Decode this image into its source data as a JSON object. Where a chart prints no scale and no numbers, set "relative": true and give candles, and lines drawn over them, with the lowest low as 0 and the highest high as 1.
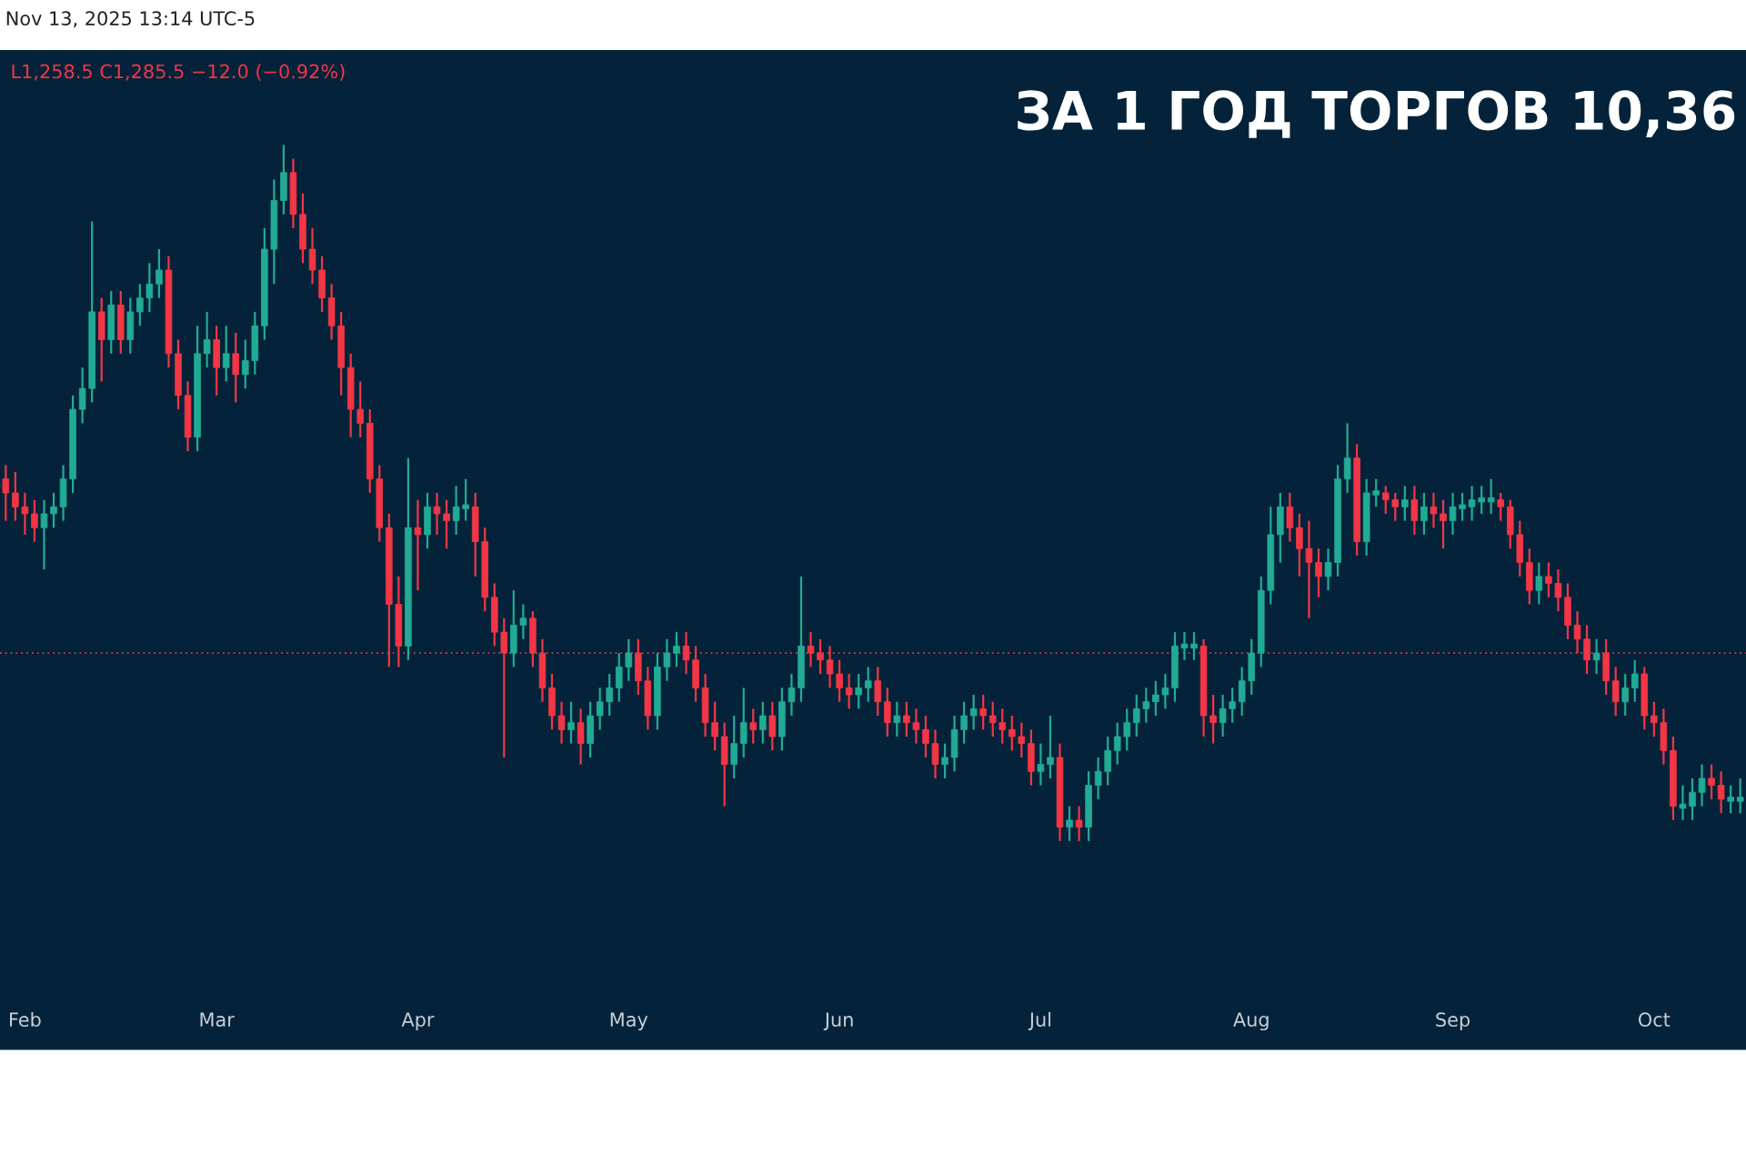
{
  "chart_data": {
    "type": "candlestick",
    "relative": true,
    "title": "ЗА 1 ГОД ТОРГОВ 10,36",
    "annotations": [
      "Nov 13, 2025 13:14 UTC-5",
      "L1,258.5 C1,285.5 −12.0 (−0.92%)"
    ],
    "categories": [
      null,
      null,
      "Feb",
      null,
      null,
      null,
      null,
      null,
      null,
      null,
      null,
      null,
      null,
      null,
      null,
      null,
      null,
      null,
      null,
      null,
      null,
      null,
      "Mar",
      null,
      null,
      null,
      null,
      null,
      null,
      null,
      null,
      null,
      null,
      null,
      null,
      null,
      null,
      null,
      null,
      null,
      null,
      null,
      null,
      "Apr",
      null,
      null,
      null,
      null,
      null,
      null,
      null,
      null,
      null,
      null,
      null,
      null,
      null,
      null,
      null,
      null,
      null,
      null,
      null,
      null,
      null,
      "May",
      null,
      null,
      null,
      null,
      null,
      null,
      null,
      null,
      null,
      null,
      null,
      null,
      null,
      null,
      null,
      null,
      null,
      null,
      null,
      null,
      null,
      "Jun",
      null,
      null,
      null,
      null,
      null,
      null,
      null,
      null,
      null,
      null,
      null,
      null,
      null,
      null,
      null,
      null,
      null,
      null,
      null,
      null,
      "Jul",
      null,
      null,
      null,
      null,
      null,
      null,
      null,
      null,
      null,
      null,
      null,
      null,
      null,
      null,
      null,
      null,
      null,
      null,
      null,
      null,
      null,
      "Aug",
      null,
      null,
      null,
      null,
      null,
      null,
      null,
      null,
      null,
      null,
      null,
      null,
      null,
      null,
      null,
      null,
      null,
      null,
      null,
      null,
      "Sep",
      null,
      null,
      null,
      null,
      null,
      null,
      null,
      null,
      null,
      null,
      null,
      null,
      null,
      null,
      null,
      null,
      null,
      null,
      null,
      null,
      "Oct",
      null,
      null,
      null,
      null,
      null,
      null,
      null,
      null,
      null
    ],
    "ohlc": [
      [
        0.52,
        0.54,
        0.46,
        0.5
      ],
      [
        0.5,
        0.53,
        0.46,
        0.48
      ],
      [
        0.48,
        0.5,
        0.44,
        0.47
      ],
      [
        0.47,
        0.49,
        0.43,
        0.45
      ],
      [
        0.45,
        0.49,
        0.39,
        0.47
      ],
      [
        0.47,
        0.5,
        0.45,
        0.48
      ],
      [
        0.48,
        0.54,
        0.46,
        0.52
      ],
      [
        0.52,
        0.64,
        0.5,
        0.62
      ],
      [
        0.62,
        0.68,
        0.6,
        0.65
      ],
      [
        0.65,
        0.89,
        0.63,
        0.76
      ],
      [
        0.76,
        0.78,
        0.66,
        0.72
      ],
      [
        0.72,
        0.79,
        0.7,
        0.77
      ],
      [
        0.77,
        0.79,
        0.7,
        0.72
      ],
      [
        0.72,
        0.78,
        0.7,
        0.76
      ],
      [
        0.76,
        0.8,
        0.74,
        0.78
      ],
      [
        0.78,
        0.83,
        0.76,
        0.8
      ],
      [
        0.8,
        0.85,
        0.78,
        0.82
      ],
      [
        0.82,
        0.84,
        0.68,
        0.7
      ],
      [
        0.7,
        0.72,
        0.62,
        0.64
      ],
      [
        0.64,
        0.66,
        0.56,
        0.58
      ],
      [
        0.58,
        0.74,
        0.56,
        0.7
      ],
      [
        0.7,
        0.76,
        0.68,
        0.72
      ],
      [
        0.72,
        0.74,
        0.64,
        0.68
      ],
      [
        0.68,
        0.74,
        0.66,
        0.7
      ],
      [
        0.7,
        0.73,
        0.63,
        0.67
      ],
      [
        0.67,
        0.72,
        0.65,
        0.69
      ],
      [
        0.69,
        0.76,
        0.67,
        0.74
      ],
      [
        0.74,
        0.88,
        0.72,
        0.85
      ],
      [
        0.85,
        0.95,
        0.8,
        0.92
      ],
      [
        0.92,
        1.0,
        0.9,
        0.96
      ],
      [
        0.96,
        0.98,
        0.88,
        0.9
      ],
      [
        0.9,
        0.93,
        0.83,
        0.85
      ],
      [
        0.85,
        0.88,
        0.8,
        0.82
      ],
      [
        0.82,
        0.84,
        0.76,
        0.78
      ],
      [
        0.78,
        0.8,
        0.72,
        0.74
      ],
      [
        0.74,
        0.76,
        0.64,
        0.68
      ],
      [
        0.68,
        0.7,
        0.58,
        0.62
      ],
      [
        0.62,
        0.66,
        0.58,
        0.6
      ],
      [
        0.6,
        0.62,
        0.5,
        0.52
      ],
      [
        0.52,
        0.54,
        0.43,
        0.45
      ],
      [
        0.45,
        0.47,
        0.25,
        0.34
      ],
      [
        0.34,
        0.38,
        0.25,
        0.28
      ],
      [
        0.28,
        0.55,
        0.26,
        0.45
      ],
      [
        0.45,
        0.49,
        0.36,
        0.44
      ],
      [
        0.44,
        0.5,
        0.42,
        0.48
      ],
      [
        0.48,
        0.5,
        0.44,
        0.47
      ],
      [
        0.47,
        0.49,
        0.42,
        0.46
      ],
      [
        0.46,
        0.51,
        0.44,
        0.48
      ],
      [
        0.48,
        0.52,
        0.46,
        0.48
      ],
      [
        0.48,
        0.5,
        0.38,
        0.43
      ],
      [
        0.43,
        0.45,
        0.33,
        0.35
      ],
      [
        0.35,
        0.37,
        0.28,
        0.3
      ],
      [
        0.3,
        0.32,
        0.12,
        0.27
      ],
      [
        0.27,
        0.36,
        0.25,
        0.31
      ],
      [
        0.31,
        0.34,
        0.29,
        0.32
      ],
      [
        0.32,
        0.33,
        0.25,
        0.27
      ],
      [
        0.27,
        0.29,
        0.2,
        0.22
      ],
      [
        0.22,
        0.24,
        0.16,
        0.18
      ],
      [
        0.18,
        0.2,
        0.14,
        0.16
      ],
      [
        0.16,
        0.2,
        0.14,
        0.17
      ],
      [
        0.17,
        0.19,
        0.11,
        0.14
      ],
      [
        0.14,
        0.2,
        0.12,
        0.18
      ],
      [
        0.18,
        0.22,
        0.16,
        0.2
      ],
      [
        0.2,
        0.24,
        0.18,
        0.22
      ],
      [
        0.22,
        0.27,
        0.2,
        0.25
      ],
      [
        0.25,
        0.29,
        0.23,
        0.27
      ],
      [
        0.27,
        0.29,
        0.21,
        0.23
      ],
      [
        0.23,
        0.25,
        0.16,
        0.18
      ],
      [
        0.18,
        0.27,
        0.16,
        0.25
      ],
      [
        0.25,
        0.29,
        0.23,
        0.27
      ],
      [
        0.27,
        0.3,
        0.25,
        0.28
      ],
      [
        0.28,
        0.3,
        0.24,
        0.26
      ],
      [
        0.26,
        0.28,
        0.2,
        0.22
      ],
      [
        0.22,
        0.24,
        0.15,
        0.17
      ],
      [
        0.17,
        0.2,
        0.13,
        0.15
      ],
      [
        0.15,
        0.17,
        0.05,
        0.11
      ],
      [
        0.11,
        0.18,
        0.09,
        0.14
      ],
      [
        0.14,
        0.22,
        0.12,
        0.17
      ],
      [
        0.17,
        0.19,
        0.14,
        0.16
      ],
      [
        0.16,
        0.2,
        0.14,
        0.18
      ],
      [
        0.18,
        0.2,
        0.13,
        0.15
      ],
      [
        0.15,
        0.22,
        0.13,
        0.2
      ],
      [
        0.2,
        0.24,
        0.18,
        0.22
      ],
      [
        0.22,
        0.38,
        0.2,
        0.28
      ],
      [
        0.28,
        0.3,
        0.25,
        0.27
      ],
      [
        0.27,
        0.29,
        0.24,
        0.26
      ],
      [
        0.26,
        0.28,
        0.22,
        0.24
      ],
      [
        0.24,
        0.26,
        0.2,
        0.22
      ],
      [
        0.22,
        0.24,
        0.19,
        0.21
      ],
      [
        0.21,
        0.24,
        0.19,
        0.22
      ],
      [
        0.22,
        0.25,
        0.2,
        0.23
      ],
      [
        0.23,
        0.25,
        0.18,
        0.2
      ],
      [
        0.2,
        0.22,
        0.15,
        0.17
      ],
      [
        0.17,
        0.2,
        0.15,
        0.18
      ],
      [
        0.18,
        0.2,
        0.15,
        0.17
      ],
      [
        0.17,
        0.19,
        0.14,
        0.16
      ],
      [
        0.16,
        0.18,
        0.12,
        0.14
      ],
      [
        0.14,
        0.16,
        0.09,
        0.11
      ],
      [
        0.11,
        0.14,
        0.09,
        0.12
      ],
      [
        0.12,
        0.18,
        0.1,
        0.16
      ],
      [
        0.16,
        0.2,
        0.14,
        0.18
      ],
      [
        0.18,
        0.21,
        0.16,
        0.19
      ],
      [
        0.19,
        0.21,
        0.16,
        0.18
      ],
      [
        0.18,
        0.2,
        0.15,
        0.17
      ],
      [
        0.17,
        0.19,
        0.14,
        0.16
      ],
      [
        0.16,
        0.18,
        0.13,
        0.15
      ],
      [
        0.15,
        0.17,
        0.12,
        0.14
      ],
      [
        0.14,
        0.16,
        0.08,
        0.1
      ],
      [
        0.1,
        0.14,
        0.08,
        0.11
      ],
      [
        0.11,
        0.18,
        0.09,
        0.12
      ],
      [
        0.12,
        0.14,
        0.0,
        0.02
      ],
      [
        0.02,
        0.05,
        0.0,
        0.03
      ],
      [
        0.03,
        0.05,
        0.0,
        0.02
      ],
      [
        0.02,
        0.1,
        0.0,
        0.08
      ],
      [
        0.08,
        0.12,
        0.06,
        0.1
      ],
      [
        0.1,
        0.15,
        0.08,
        0.13
      ],
      [
        0.13,
        0.17,
        0.11,
        0.15
      ],
      [
        0.15,
        0.19,
        0.13,
        0.17
      ],
      [
        0.17,
        0.21,
        0.15,
        0.19
      ],
      [
        0.19,
        0.22,
        0.17,
        0.2
      ],
      [
        0.2,
        0.23,
        0.18,
        0.21
      ],
      [
        0.21,
        0.24,
        0.19,
        0.22
      ],
      [
        0.22,
        0.3,
        0.2,
        0.28
      ],
      [
        0.28,
        0.3,
        0.26,
        0.28
      ],
      [
        0.28,
        0.3,
        0.26,
        0.28
      ],
      [
        0.28,
        0.29,
        0.15,
        0.18
      ],
      [
        0.18,
        0.21,
        0.14,
        0.17
      ],
      [
        0.17,
        0.21,
        0.15,
        0.19
      ],
      [
        0.19,
        0.22,
        0.17,
        0.2
      ],
      [
        0.2,
        0.25,
        0.18,
        0.23
      ],
      [
        0.23,
        0.29,
        0.21,
        0.27
      ],
      [
        0.27,
        0.38,
        0.25,
        0.36
      ],
      [
        0.36,
        0.48,
        0.34,
        0.44
      ],
      [
        0.44,
        0.5,
        0.4,
        0.48
      ],
      [
        0.48,
        0.5,
        0.43,
        0.45
      ],
      [
        0.45,
        0.47,
        0.38,
        0.42
      ],
      [
        0.42,
        0.46,
        0.32,
        0.4
      ],
      [
        0.4,
        0.42,
        0.35,
        0.38
      ],
      [
        0.38,
        0.42,
        0.36,
        0.4
      ],
      [
        0.4,
        0.54,
        0.38,
        0.52
      ],
      [
        0.52,
        0.6,
        0.5,
        0.55
      ],
      [
        0.55,
        0.57,
        0.41,
        0.43
      ],
      [
        0.43,
        0.52,
        0.41,
        0.5
      ],
      [
        0.5,
        0.52,
        0.48,
        0.5
      ],
      [
        0.5,
        0.51,
        0.47,
        0.49
      ],
      [
        0.49,
        0.5,
        0.46,
        0.48
      ],
      [
        0.48,
        0.51,
        0.46,
        0.49
      ],
      [
        0.49,
        0.51,
        0.44,
        0.46
      ],
      [
        0.46,
        0.5,
        0.44,
        0.48
      ],
      [
        0.48,
        0.5,
        0.45,
        0.47
      ],
      [
        0.47,
        0.49,
        0.42,
        0.46
      ],
      [
        0.46,
        0.5,
        0.44,
        0.48
      ],
      [
        0.48,
        0.5,
        0.46,
        0.48
      ],
      [
        0.48,
        0.51,
        0.46,
        0.49
      ],
      [
        0.49,
        0.51,
        0.47,
        0.49
      ],
      [
        0.49,
        0.52,
        0.47,
        0.49
      ],
      [
        0.49,
        0.5,
        0.46,
        0.48
      ],
      [
        0.48,
        0.49,
        0.42,
        0.44
      ],
      [
        0.44,
        0.46,
        0.38,
        0.4
      ],
      [
        0.4,
        0.42,
        0.34,
        0.36
      ],
      [
        0.36,
        0.4,
        0.34,
        0.38
      ],
      [
        0.38,
        0.4,
        0.35,
        0.37
      ],
      [
        0.37,
        0.39,
        0.33,
        0.35
      ],
      [
        0.35,
        0.37,
        0.29,
        0.31
      ],
      [
        0.31,
        0.33,
        0.27,
        0.29
      ],
      [
        0.29,
        0.31,
        0.24,
        0.26
      ],
      [
        0.26,
        0.29,
        0.24,
        0.27
      ],
      [
        0.27,
        0.29,
        0.21,
        0.23
      ],
      [
        0.23,
        0.25,
        0.18,
        0.2
      ],
      [
        0.2,
        0.24,
        0.18,
        0.22
      ],
      [
        0.22,
        0.26,
        0.2,
        0.24
      ],
      [
        0.24,
        0.25,
        0.16,
        0.18
      ],
      [
        0.18,
        0.2,
        0.15,
        0.17
      ],
      [
        0.17,
        0.19,
        0.11,
        0.13
      ],
      [
        0.13,
        0.15,
        0.03,
        0.05
      ],
      [
        0.05,
        0.08,
        0.03,
        0.05
      ],
      [
        0.05,
        0.09,
        0.03,
        0.07
      ],
      [
        0.07,
        0.11,
        0.05,
        0.09
      ],
      [
        0.09,
        0.11,
        0.06,
        0.08
      ],
      [
        0.08,
        0.1,
        0.04,
        0.06
      ],
      [
        0.06,
        0.08,
        0.04,
        0.06
      ],
      [
        0.06,
        0.09,
        0.04,
        0.06
      ]
    ],
    "colors": [
      "#f23645",
      "#f23645",
      "#f23645",
      "#f23645",
      "#22ab94",
      "#22ab94",
      "#22ab94",
      "#22ab94",
      "#22ab94",
      "#22ab94",
      "#f23645",
      "#22ab94",
      "#f23645",
      "#22ab94",
      "#22ab94",
      "#22ab94",
      "#22ab94",
      "#f23645",
      "#f23645",
      "#f23645",
      "#22ab94",
      "#22ab94",
      "#f23645",
      "#22ab94",
      "#f23645",
      "#22ab94",
      "#22ab94",
      "#22ab94",
      "#22ab94",
      "#22ab94",
      "#f23645",
      "#f23645",
      "#f23645",
      "#f23645",
      "#f23645",
      "#f23645",
      "#f23645",
      "#f23645",
      "#f23645",
      "#f23645",
      "#f23645",
      "#f23645",
      "#22ab94",
      "#f23645",
      "#22ab94",
      "#f23645",
      "#f23645",
      "#22ab94",
      "#22ab94",
      "#f23645",
      "#f23645",
      "#f23645",
      "#f23645",
      "#22ab94",
      "#22ab94",
      "#f23645",
      "#f23645",
      "#f23645",
      "#f23645",
      "#22ab94",
      "#f23645",
      "#22ab94",
      "#22ab94",
      "#22ab94",
      "#22ab94",
      "#22ab94",
      "#f23645",
      "#f23645",
      "#22ab94",
      "#22ab94",
      "#22ab94",
      "#f23645",
      "#f23645",
      "#f23645",
      "#f23645",
      "#f23645",
      "#22ab94",
      "#22ab94",
      "#f23645",
      "#22ab94",
      "#f23645",
      "#22ab94",
      "#22ab94",
      "#22ab94",
      "#f23645",
      "#f23645",
      "#f23645",
      "#f23645",
      "#f23645",
      "#22ab94",
      "#22ab94",
      "#f23645",
      "#f23645",
      "#22ab94",
      "#f23645",
      "#f23645",
      "#f23645",
      "#f23645",
      "#22ab94",
      "#22ab94",
      "#22ab94",
      "#22ab94",
      "#f23645",
      "#f23645",
      "#f23645",
      "#f23645",
      "#f23645",
      "#f23645",
      "#22ab94",
      "#22ab94",
      "#f23645",
      "#22ab94",
      "#f23645",
      "#22ab94",
      "#22ab94",
      "#22ab94",
      "#22ab94",
      "#22ab94",
      "#22ab94",
      "#22ab94",
      "#22ab94",
      "#22ab94",
      "#22ab94",
      "#22ab94",
      "#22ab94",
      "#f23645",
      "#f23645",
      "#22ab94",
      "#22ab94",
      "#22ab94",
      "#22ab94",
      "#22ab94",
      "#22ab94",
      "#22ab94",
      "#f23645",
      "#f23645",
      "#f23645",
      "#f23645",
      "#22ab94",
      "#22ab94",
      "#22ab94",
      "#f23645",
      "#22ab94",
      "#22ab94",
      "#f23645",
      "#f23645",
      "#22ab94",
      "#f23645",
      "#22ab94",
      "#f23645",
      "#f23645",
      "#22ab94",
      "#22ab94",
      "#22ab94",
      "#22ab94",
      "#22ab94",
      "#f23645",
      "#f23645",
      "#f23645",
      "#f23645",
      "#22ab94",
      "#f23645",
      "#f23645",
      "#f23645",
      "#f23645",
      "#f23645",
      "#22ab94",
      "#f23645",
      "#f23645",
      "#22ab94",
      "#22ab94",
      "#f23645",
      "#f23645",
      "#f23645",
      "#f23645",
      "#22ab94",
      "#22ab94",
      "#22ab94",
      "#f23645",
      "#f23645",
      "#22ab94",
      "#22ab94"
    ],
    "ref_lines": [
      {
        "axis": "y",
        "value": 0.27,
        "color": "#f23645",
        "line_style": "dotted"
      }
    ],
    "tick_labels": "x"
  }
}
